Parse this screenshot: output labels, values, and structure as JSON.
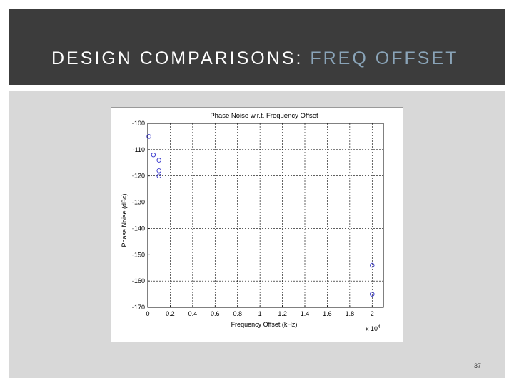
{
  "slide": {
    "title_main": "DESIGN COMPARISONS: ",
    "title_accent": "FREQ OFFSET",
    "page_number": "37"
  },
  "colors": {
    "header_bg": "#3c3c3c",
    "title_accent": "#8aa4b8",
    "content_bg": "#d8d8d8",
    "marker": "#3333cc"
  },
  "chart_data": {
    "type": "scatter",
    "title": "Phase Noise w.r.t. Frequency Offset",
    "xlabel": "Frequency Offset (kHz)",
    "ylabel": "Phase Noise (dBc)",
    "x_multiplier_label": "x 10",
    "x_multiplier_exp": "4",
    "xlim": [
      0,
      2.1
    ],
    "ylim": [
      -170,
      -100
    ],
    "xticks": [
      0,
      0.2,
      0.4,
      0.6,
      0.8,
      1,
      1.2,
      1.4,
      1.6,
      1.8,
      2
    ],
    "xtick_labels": [
      "0",
      "0.2",
      "0.4",
      "0.6",
      "0.8",
      "1",
      "1.2",
      "1.4",
      "1.6",
      "1.8",
      "2"
    ],
    "yticks": [
      -100,
      -110,
      -120,
      -130,
      -140,
      -150,
      -160,
      -170
    ],
    "ytick_labels": [
      "-100",
      "-110",
      "-120",
      "-130",
      "-140",
      "-150",
      "-160",
      "-170"
    ],
    "grid": true,
    "marker": "circle",
    "points": [
      {
        "x": 0.01,
        "y": -105
      },
      {
        "x": 0.05,
        "y": -112
      },
      {
        "x": 0.1,
        "y": -114
      },
      {
        "x": 0.1,
        "y": -118
      },
      {
        "x": 0.1,
        "y": -120
      },
      {
        "x": 2.0,
        "y": -154
      },
      {
        "x": 2.0,
        "y": -165
      }
    ]
  }
}
